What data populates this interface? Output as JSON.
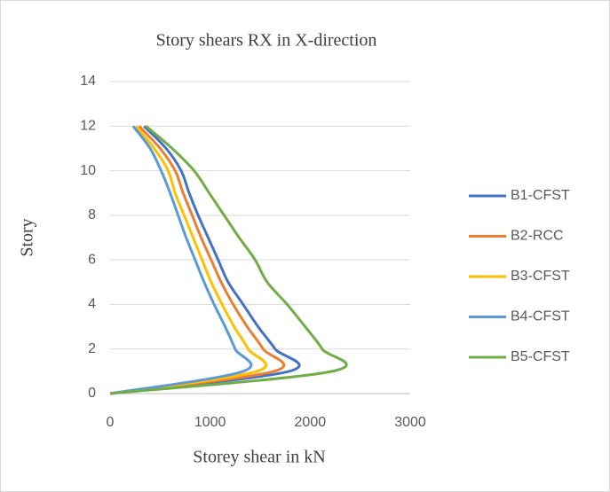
{
  "chart_data": {
    "type": "line",
    "title": "Story shears  RX in X-direction",
    "xlabel": "Storey shear in kN",
    "ylabel": "Story",
    "y": [
      0,
      1,
      2,
      3,
      4,
      5,
      6,
      7,
      8,
      9,
      10,
      11,
      12
    ],
    "series": [
      {
        "name": "B1-CFST",
        "color": "#4472c4",
        "values": [
          0,
          1790,
          1650,
          1480,
          1330,
          1180,
          1080,
          980,
          880,
          790,
          710,
          560,
          340
        ]
      },
      {
        "name": "B2-RCC",
        "color": "#ed7d31",
        "values": [
          0,
          1640,
          1530,
          1370,
          1230,
          1110,
          1010,
          910,
          820,
          730,
          650,
          500,
          290
        ]
      },
      {
        "name": "B3-CFST",
        "color": "#ffc000",
        "values": [
          0,
          1470,
          1380,
          1240,
          1120,
          1010,
          920,
          830,
          740,
          650,
          580,
          440,
          260
        ]
      },
      {
        "name": "B4-CFST",
        "color": "#5b9bd5",
        "values": [
          0,
          1330,
          1250,
          1150,
          1040,
          940,
          850,
          760,
          680,
          600,
          510,
          400,
          230
        ]
      },
      {
        "name": "B5-CFST",
        "color": "#70ad47",
        "values": [
          0,
          2220,
          2120,
          1950,
          1770,
          1570,
          1450,
          1290,
          1140,
          990,
          840,
          620,
          360
        ]
      }
    ],
    "xlim": [
      0,
      3000
    ],
    "xticks": [
      0,
      1000,
      2000,
      3000
    ],
    "ylim": [
      0,
      14
    ],
    "yticks": [
      0,
      2,
      4,
      6,
      8,
      10,
      12,
      14
    ],
    "grid": true,
    "legend": "right"
  }
}
